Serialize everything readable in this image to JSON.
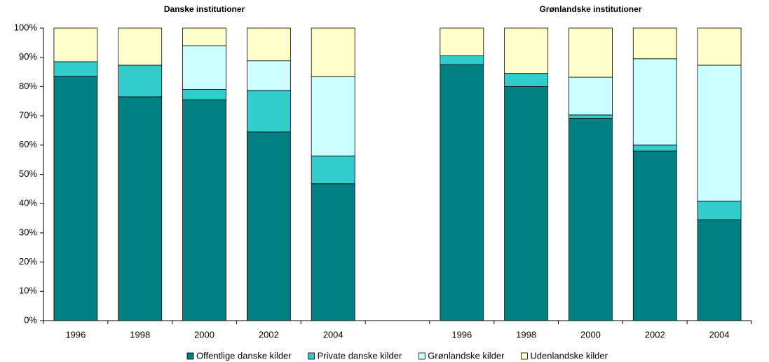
{
  "chart_data": {
    "type": "stacked_bar",
    "subtitles": [
      "Danske institutioner",
      "Grønlandske institutioner"
    ],
    "categories": [
      "1996",
      "1998",
      "2000",
      "2002",
      "2004",
      null,
      "1996",
      "1998",
      "2000",
      "2002",
      "2004"
    ],
    "series": [
      {
        "name": "Offentlige danske kilder",
        "color": "#008080",
        "values": [
          83.5,
          76.5,
          75.5,
          64.5,
          46.8,
          null,
          87.5,
          80,
          69.2,
          58,
          34.5
        ]
      },
      {
        "name": "Private danske kilder",
        "color": "#33CCCC",
        "values": [
          5,
          10.8,
          3.5,
          14.2,
          9.5,
          null,
          3,
          4.5,
          1.1,
          2,
          6.3
        ]
      },
      {
        "name": "Grønlandske kilder",
        "color": "#CCFFFF",
        "values": [
          0,
          0,
          15,
          10.1,
          27.1,
          null,
          0,
          0,
          12.9,
          29.5,
          46.5
        ]
      },
      {
        "name": "Udenlandske kilder",
        "color": "#FFFFCC",
        "values": [
          11.5,
          12.7,
          6,
          11.2,
          16.6,
          null,
          9.5,
          15.5,
          16.8,
          10.5,
          12.7
        ]
      }
    ],
    "ylim": [
      0,
      100
    ],
    "yticks": [
      {
        "value": 0,
        "label": "0%"
      },
      {
        "value": 10,
        "label": "10%"
      },
      {
        "value": 20,
        "label": "20%"
      },
      {
        "value": 30,
        "label": "30%"
      },
      {
        "value": 40,
        "label": "40%"
      },
      {
        "value": 50,
        "label": "50%"
      },
      {
        "value": 60,
        "label": "60%"
      },
      {
        "value": 70,
        "label": "70%"
      },
      {
        "value": 80,
        "label": "80%"
      },
      {
        "value": 90,
        "label": "90%"
      },
      {
        "value": 100,
        "label": "100%"
      }
    ],
    "grid": false,
    "legend": "bottom"
  }
}
